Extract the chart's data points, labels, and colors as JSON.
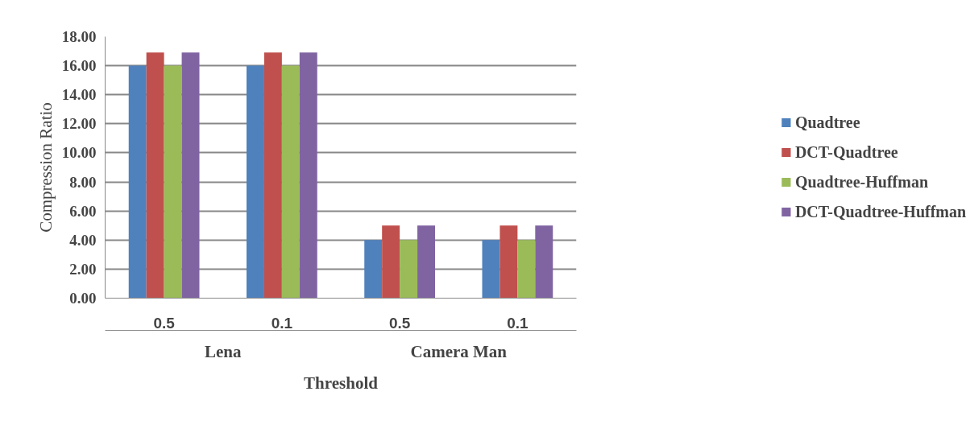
{
  "chart_data": {
    "type": "bar",
    "xlabel": "Threshold",
    "ylabel": "Compression Ratio",
    "categories": [
      "0.5",
      "0.1",
      "0.5",
      "0.1"
    ],
    "annotations": [
      "Lena",
      "Camera Man"
    ],
    "series": [
      {
        "name": "Quadtree",
        "color": "#4f81bd",
        "values": [
          16.0,
          16.0,
          4.0,
          4.0
        ]
      },
      {
        "name": "DCT-Quadtree",
        "color": "#c0504d",
        "values": [
          16.9,
          16.9,
          5.0,
          5.0
        ]
      },
      {
        "name": "Quadtree-Huffman",
        "color": "#9bbb59",
        "values": [
          16.0,
          16.0,
          4.0,
          4.0
        ]
      },
      {
        "name": "DCT-Quadtree-Huffman",
        "color": "#8064a2",
        "values": [
          16.9,
          16.9,
          5.0,
          5.0
        ]
      }
    ],
    "ylim": [
      0,
      18
    ],
    "yticks": [
      {
        "value": 0,
        "label": "0.00"
      },
      {
        "value": 2,
        "label": "2.00"
      },
      {
        "value": 4,
        "label": "4.00"
      },
      {
        "value": 6,
        "label": "6.00"
      },
      {
        "value": 8,
        "label": "8.00"
      },
      {
        "value": 10,
        "label": "10.00"
      },
      {
        "value": 12,
        "label": "12.00"
      },
      {
        "value": 14,
        "label": "14.00"
      },
      {
        "value": 16,
        "label": "16.00"
      },
      {
        "value": 18,
        "label": "18.00"
      }
    ],
    "grid": "y",
    "legend": "right"
  }
}
